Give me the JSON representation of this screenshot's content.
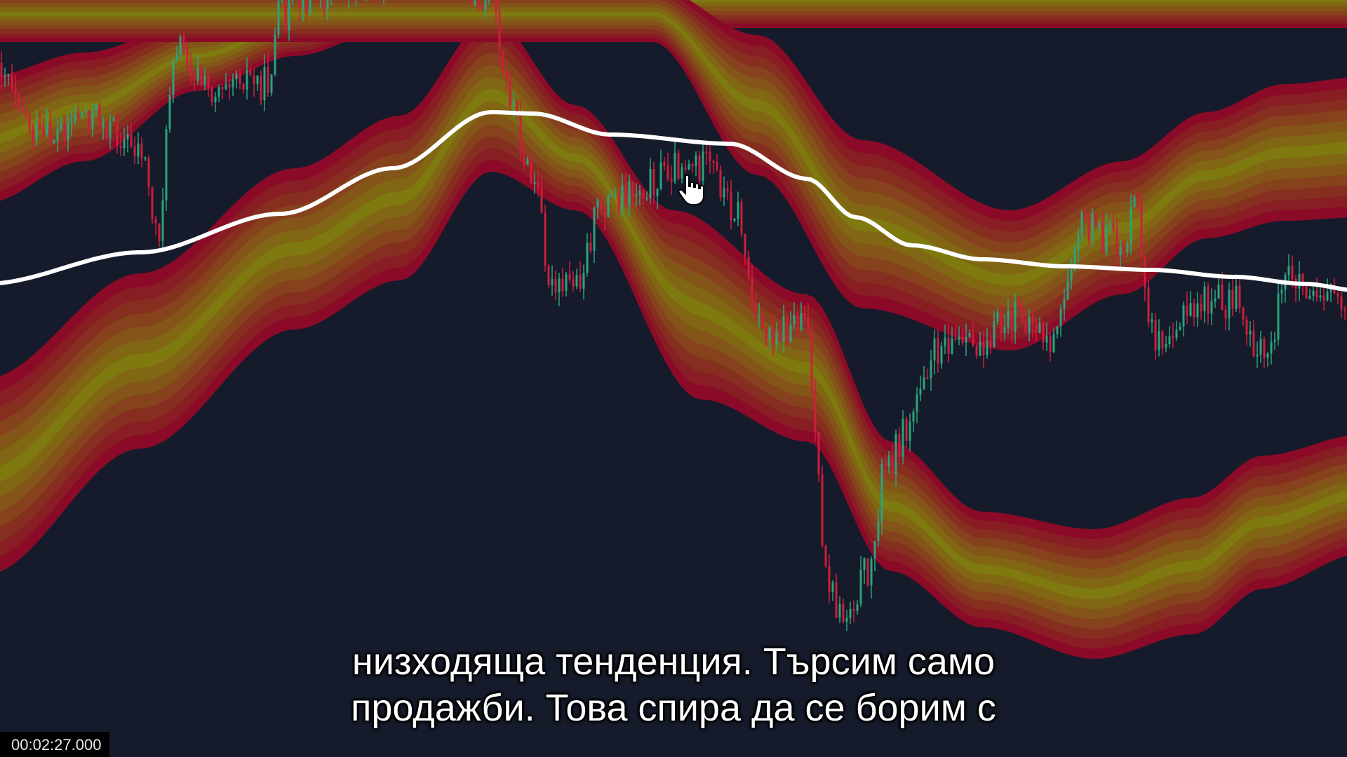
{
  "video": {
    "subtitle_line1": "низходяща тенденция. Търсим само",
    "subtitle_line2": "продажби. Това спира да се борим с",
    "timestamp": "00:02:27.000"
  },
  "colors": {
    "background": "#151b2a",
    "band_outer": "#8a0a28",
    "band_inner": "#7f7a10",
    "candle_up": "#2aa37f",
    "candle_down": "#d01c3c",
    "ma_line": "#ffffff"
  },
  "cursor_icon": "hand-pointer-icon"
}
